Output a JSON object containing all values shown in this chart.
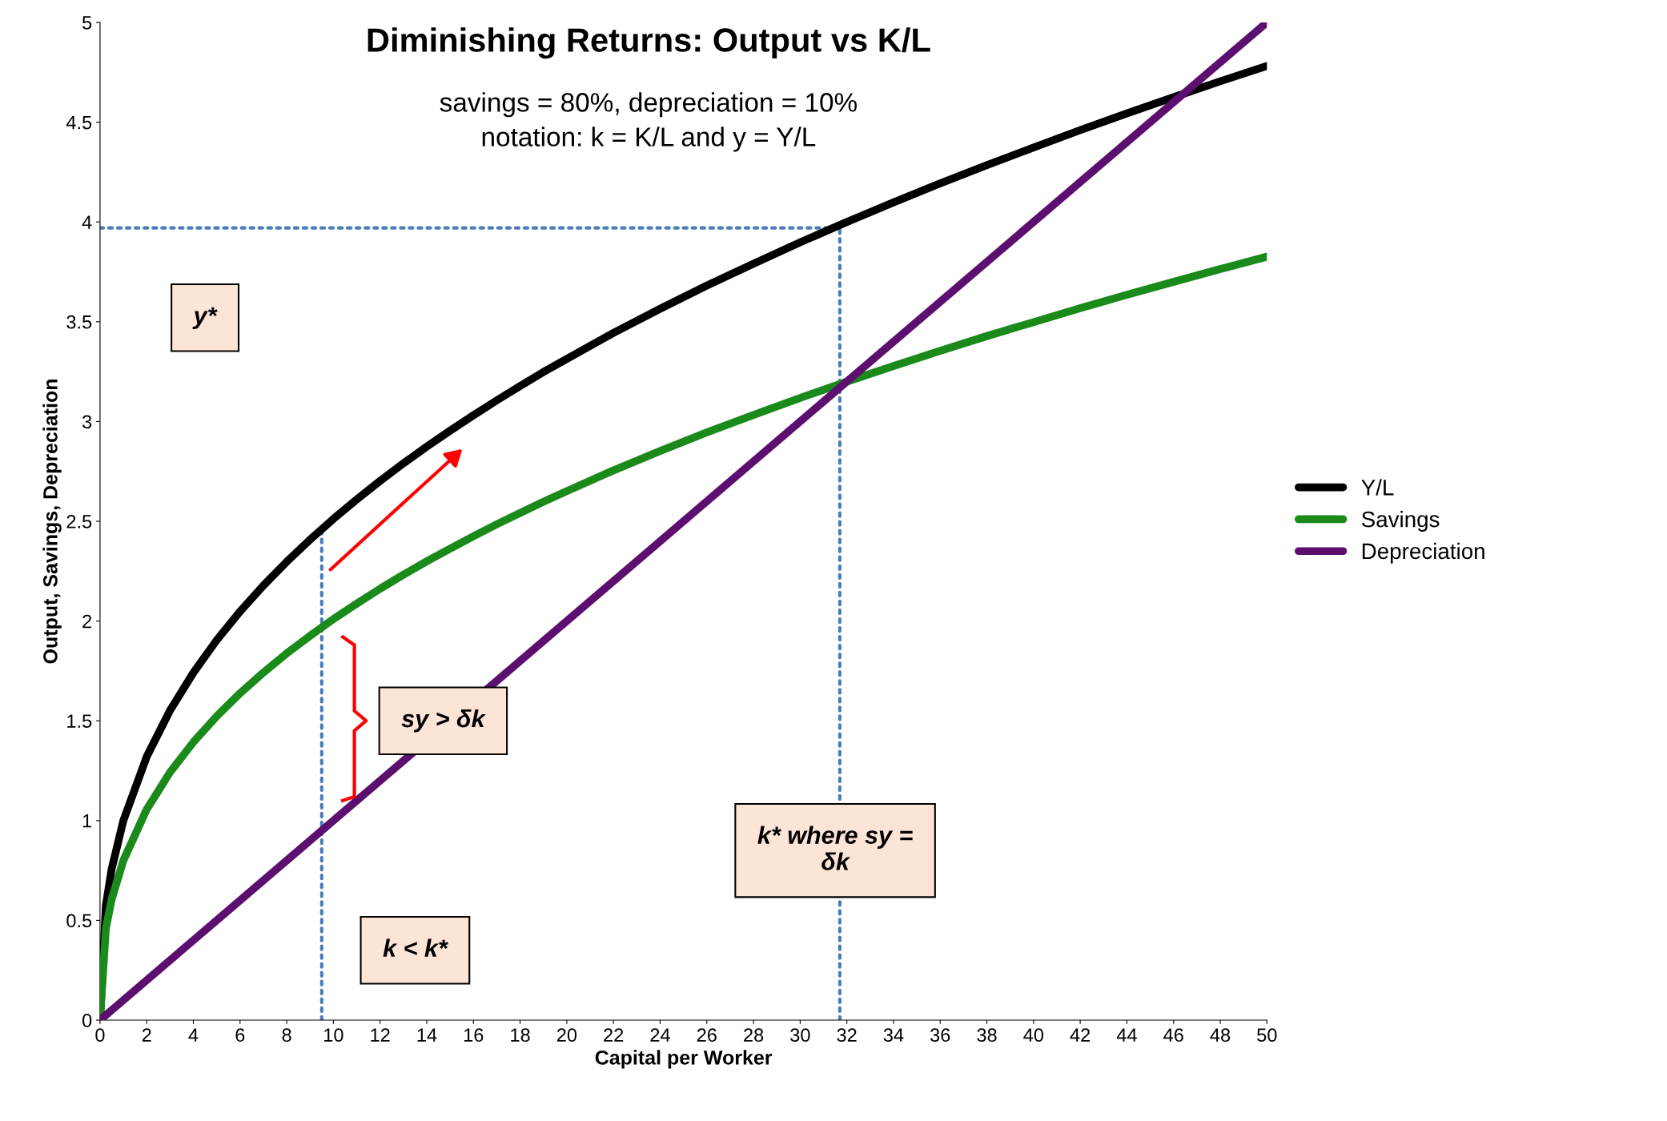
{
  "chart_data": {
    "type": "line",
    "title": "Diminishing Returns: Output vs K/L",
    "subtitle": "savings = 80%, depreciation = 10%\nnotation: k = K/L and y = Y/L",
    "xlabel": "Capital per Worker",
    "ylabel": "Output, Savings, Depreciation",
    "series": [
      {
        "name": "Y/L",
        "color": "#000000",
        "x": [
          0,
          0.25,
          0.5,
          1,
          2,
          3,
          4,
          5,
          6,
          7,
          8,
          9,
          10,
          11,
          12,
          13,
          14,
          15,
          16,
          17,
          18,
          19,
          20,
          22,
          24,
          26,
          28,
          30,
          32,
          34,
          36,
          38,
          40,
          42,
          44,
          46,
          48,
          50
        ],
        "values": [
          0,
          0.574,
          0.758,
          1,
          1.32,
          1.552,
          1.741,
          1.904,
          2.048,
          2.178,
          2.297,
          2.408,
          2.512,
          2.609,
          2.702,
          2.79,
          2.874,
          2.954,
          3.031,
          3.106,
          3.178,
          3.248,
          3.314,
          3.444,
          3.565,
          3.681,
          3.791,
          3.898,
          4.0,
          4.098,
          4.193,
          4.285,
          4.373,
          4.46,
          4.544,
          4.625,
          4.705,
          4.782
        ]
      },
      {
        "name": "Savings",
        "color": "#1a8a1a",
        "x": [
          0,
          0.25,
          0.5,
          1,
          2,
          3,
          4,
          5,
          6,
          7,
          8,
          9,
          10,
          11,
          12,
          13,
          14,
          15,
          16,
          17,
          18,
          19,
          20,
          22,
          24,
          26,
          28,
          30,
          32,
          34,
          36,
          38,
          40,
          42,
          44,
          46,
          48,
          50
        ],
        "values": [
          0,
          0.459,
          0.606,
          0.8,
          1.056,
          1.242,
          1.393,
          1.523,
          1.638,
          1.742,
          1.838,
          1.926,
          2.01,
          2.087,
          2.162,
          2.232,
          2.299,
          2.363,
          2.425,
          2.485,
          2.542,
          2.598,
          2.651,
          2.755,
          2.852,
          2.945,
          3.033,
          3.118,
          3.2,
          3.278,
          3.354,
          3.428,
          3.498,
          3.568,
          3.635,
          3.7,
          3.764,
          3.826
        ]
      },
      {
        "name": "Depreciation",
        "color": "#5c0f6e",
        "x": [
          0,
          50
        ],
        "values": [
          0,
          5
        ]
      },
      {
        "color": "#4a7ebb",
        "line_style": "dotted",
        "x": [
          0,
          31.7
        ],
        "values": [
          3.97,
          3.97
        ]
      },
      {
        "color": "#4a7ebb",
        "line_style": "dotted",
        "x": [
          31.7,
          31.7
        ],
        "values": [
          0,
          3.97
        ]
      },
      {
        "color": "#4a7ebb",
        "line_style": "dotted",
        "x": [
          9.5,
          9.5
        ],
        "values": [
          0,
          2.45
        ]
      }
    ],
    "annotations": [
      "y*",
      "sy > δk",
      "k* where sy =\nδk",
      "k < k*"
    ],
    "xlim": [
      0,
      50
    ],
    "ylim": [
      0,
      5
    ],
    "xticks": [
      0,
      2,
      4,
      6,
      8,
      10,
      12,
      14,
      16,
      18,
      20,
      22,
      24,
      26,
      28,
      30,
      32,
      34,
      36,
      38,
      40,
      42,
      44,
      46,
      48,
      50
    ],
    "yticks": [
      0,
      0.5,
      1,
      1.5,
      2,
      2.5,
      3,
      3.5,
      4,
      4.5,
      5
    ],
    "grid": false,
    "legend": "right",
    "marker": "none",
    "line_style": "solid"
  }
}
